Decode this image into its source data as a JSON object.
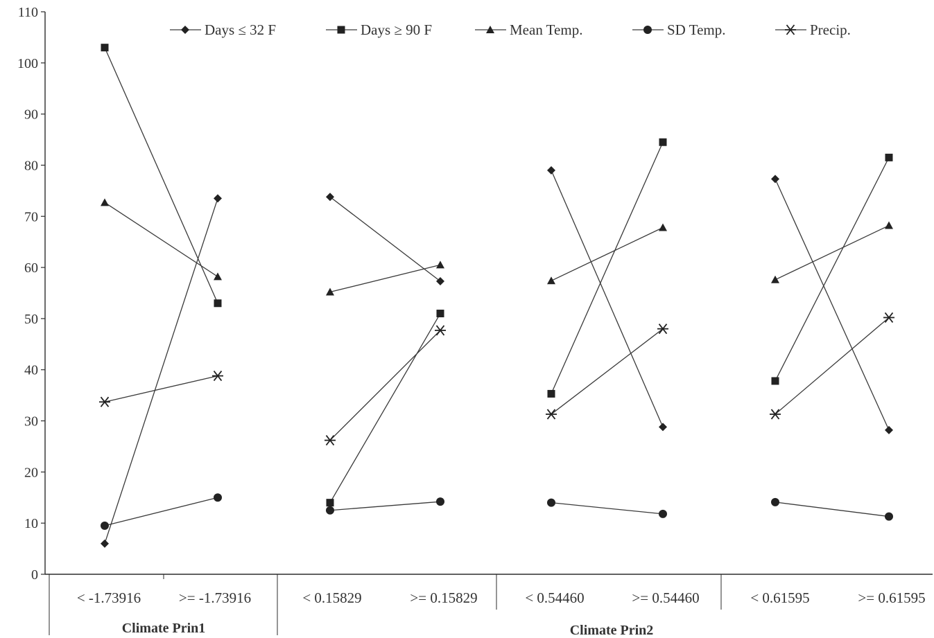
{
  "chart_data": {
    "type": "line",
    "title": "",
    "xlabel": "",
    "ylabel": "",
    "ylim": [
      0,
      110
    ],
    "yticks": [
      0,
      10,
      20,
      30,
      40,
      50,
      60,
      70,
      80,
      90,
      100,
      110
    ],
    "grid": false,
    "legend_position": "top",
    "categories": [
      "< -1.73916",
      ">= -1.73916",
      "< 0.15829",
      ">= 0.15829",
      "< 0.54460",
      ">= 0.54460",
      "< 0.61595",
      ">= 0.61595"
    ],
    "pairs": [
      [
        0,
        1
      ],
      [
        2,
        3
      ],
      [
        4,
        5
      ],
      [
        6,
        7
      ]
    ],
    "groups": [
      {
        "label": "Climate Prin1",
        "categories": [
          0,
          1
        ]
      },
      {
        "label": "Climate Prin2",
        "categories": [
          2,
          3,
          4,
          5,
          6,
          7
        ]
      }
    ],
    "series": [
      {
        "name": "Days ≤ 32 F",
        "marker": "diamond",
        "values": [
          6,
          73.5,
          73.8,
          57.3,
          79,
          28.8,
          77.3,
          28.2
        ]
      },
      {
        "name": "Days ≥ 90 F",
        "marker": "square",
        "values": [
          103,
          53,
          14,
          51,
          35.3,
          84.5,
          37.8,
          81.5
        ]
      },
      {
        "name": "Mean Temp.",
        "marker": "triangle",
        "values": [
          72.7,
          58.2,
          55.2,
          60.5,
          57.4,
          67.8,
          57.6,
          68.2
        ]
      },
      {
        "name": "SD Temp.",
        "marker": "circle",
        "values": [
          9.5,
          15,
          12.5,
          14.2,
          14,
          11.8,
          14.1,
          11.3
        ]
      },
      {
        "name": "Precip.",
        "marker": "star",
        "values": [
          33.7,
          38.8,
          26.2,
          47.7,
          31.3,
          48,
          31.3,
          50.2
        ]
      }
    ]
  }
}
